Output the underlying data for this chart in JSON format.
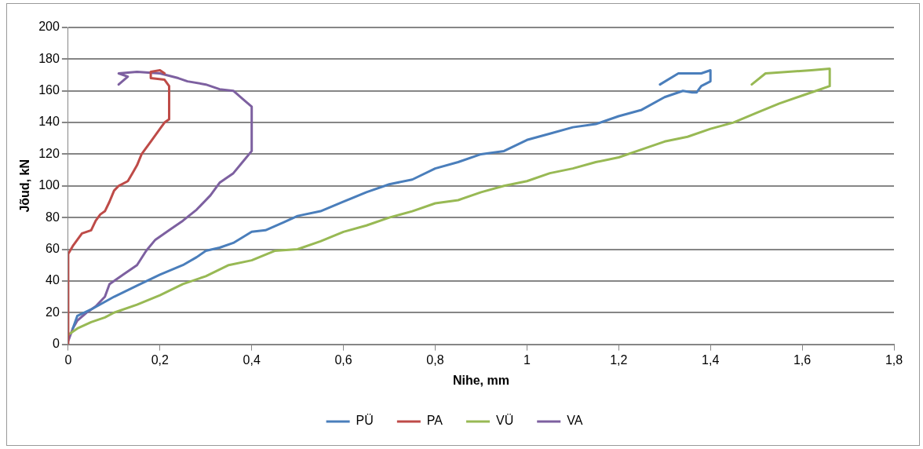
{
  "chart_data": {
    "type": "line",
    "xlabel": "Nihe, mm",
    "ylabel": "Jõud, kN",
    "xlim": [
      0,
      1.8
    ],
    "xticks": [
      0,
      {
        "value": 0.2,
        "label": "0,2"
      },
      {
        "value": 0.4,
        "label": "0,4"
      },
      {
        "value": 0.6,
        "label": "0,6"
      },
      {
        "value": 0.8,
        "label": "0,8"
      },
      1,
      {
        "value": 1.2,
        "label": "1,2"
      },
      {
        "value": 1.4,
        "label": "1,4"
      },
      {
        "value": 1.6,
        "label": "1,6"
      },
      {
        "value": 1.8,
        "label": "1,8"
      }
    ],
    "ylim": [
      0,
      200
    ],
    "yticks": [
      0,
      20,
      40,
      60,
      80,
      100,
      120,
      140,
      160,
      180,
      200
    ],
    "grid": "y",
    "legend": "bottom",
    "marker": "none",
    "line_style": "solid",
    "series": [
      {
        "name": "PÜ",
        "color": "#4a7ebb",
        "x": [
          0.01,
          0.02,
          0.05,
          0.1,
          0.15,
          0.2,
          0.25,
          0.28,
          0.3,
          0.33,
          0.36,
          0.4,
          0.43,
          0.47,
          0.5,
          0.55,
          0.6,
          0.65,
          0.7,
          0.75,
          0.8,
          0.85,
          0.9,
          0.95,
          1.0,
          1.05,
          1.1,
          1.15,
          1.2,
          1.25,
          1.3,
          1.34,
          1.36,
          1.37,
          1.38,
          1.4,
          1.4,
          1.38,
          1.33,
          1.29
        ],
        "values": [
          10,
          18,
          22,
          30,
          37,
          44,
          50,
          55,
          59,
          61,
          64,
          71,
          72,
          77,
          81,
          84,
          90,
          96,
          101,
          104,
          111,
          115,
          120,
          122,
          129,
          133,
          137,
          139,
          144,
          148,
          156,
          160,
          159,
          159,
          163,
          166,
          173,
          171,
          171,
          164
        ]
      },
      {
        "name": "PA",
        "color": "#be4b48",
        "x": [
          0,
          0,
          0.01,
          0.02,
          0.03,
          0.05,
          0.06,
          0.07,
          0.08,
          0.09,
          0.1,
          0.11,
          0.13,
          0.14,
          0.15,
          0.16,
          0.18,
          0.2,
          0.21,
          0.22,
          0.22,
          0.21,
          0.18,
          0.18,
          0.2,
          0.21
        ],
        "values": [
          0,
          57,
          62,
          66,
          70,
          72,
          78,
          82,
          84,
          90,
          97,
          100,
          103,
          108,
          113,
          120,
          128,
          136,
          140,
          142,
          163,
          167,
          168,
          172,
          173,
          171
        ]
      },
      {
        "name": "VÜ",
        "color": "#98b954",
        "x": [
          0,
          0.02,
          0.05,
          0.08,
          0.1,
          0.15,
          0.2,
          0.25,
          0.3,
          0.35,
          0.4,
          0.45,
          0.5,
          0.55,
          0.6,
          0.65,
          0.7,
          0.75,
          0.8,
          0.85,
          0.9,
          0.95,
          1.0,
          1.05,
          1.1,
          1.15,
          1.2,
          1.25,
          1.3,
          1.35,
          1.4,
          1.45,
          1.5,
          1.55,
          1.6,
          1.63,
          1.66,
          1.66,
          1.62,
          1.52,
          1.49
        ],
        "values": [
          6,
          10,
          14,
          17,
          20,
          25,
          31,
          38,
          43,
          50,
          53,
          59,
          60,
          65,
          71,
          75,
          80,
          84,
          89,
          91,
          96,
          100,
          103,
          108,
          111,
          115,
          118,
          123,
          128,
          131,
          136,
          140,
          146,
          152,
          157,
          160,
          163,
          174,
          173,
          171,
          164
        ]
      },
      {
        "name": "VA",
        "color": "#7d60a0",
        "x": [
          0,
          0.01,
          0.02,
          0.04,
          0.06,
          0.08,
          0.09,
          0.12,
          0.15,
          0.17,
          0.19,
          0.22,
          0.25,
          0.28,
          0.31,
          0.33,
          0.36,
          0.38,
          0.4,
          0.4,
          0.38,
          0.36,
          0.33,
          0.3,
          0.26,
          0.24,
          0.2,
          0.15,
          0.11,
          0.13,
          0.11
        ],
        "values": [
          2,
          10,
          15,
          20,
          24,
          30,
          38,
          44,
          50,
          59,
          66,
          72,
          78,
          85,
          94,
          102,
          108,
          115,
          122,
          150,
          155,
          160,
          161,
          164,
          166,
          168,
          171,
          172,
          171,
          169,
          164
        ]
      }
    ]
  }
}
